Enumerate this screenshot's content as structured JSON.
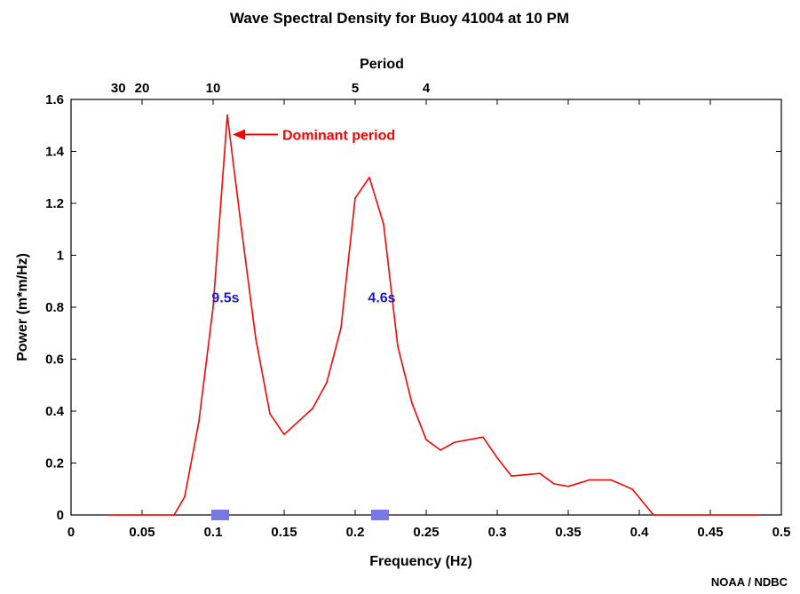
{
  "chart_data": {
    "type": "line",
    "title": "Wave Spectral Density for Buoy 41004 at 10 PM",
    "xlabel": "Frequency (Hz)",
    "ylabel": "Power (m*m/Hz)",
    "top_axis_label": "Period",
    "xlim": [
      0,
      0.5
    ],
    "ylim": [
      0,
      1.6
    ],
    "x_ticks": [
      {
        "value": 0,
        "label": "0"
      },
      {
        "value": 0.05,
        "label": "0.05"
      },
      {
        "value": 0.1,
        "label": "0.1"
      },
      {
        "value": 0.15,
        "label": "0.15"
      },
      {
        "value": 0.2,
        "label": "0.2"
      },
      {
        "value": 0.25,
        "label": "0.25"
      },
      {
        "value": 0.3,
        "label": "0.3"
      },
      {
        "value": 0.35,
        "label": "0.35"
      },
      {
        "value": 0.4,
        "label": "0.4"
      },
      {
        "value": 0.45,
        "label": "0.45"
      },
      {
        "value": 0.5,
        "label": "0.5"
      }
    ],
    "y_ticks": [
      {
        "value": 0,
        "label": "0"
      },
      {
        "value": 0.2,
        "label": "0.2"
      },
      {
        "value": 0.4,
        "label": "0.4"
      },
      {
        "value": 0.6,
        "label": "0.6"
      },
      {
        "value": 0.8,
        "label": "0.8"
      },
      {
        "value": 1.0,
        "label": "1"
      },
      {
        "value": 1.2,
        "label": "1.2"
      },
      {
        "value": 1.4,
        "label": "1.4"
      },
      {
        "value": 1.6,
        "label": "1.6"
      }
    ],
    "top_ticks": [
      {
        "value": 0.0333,
        "label": "30"
      },
      {
        "value": 0.05,
        "label": "20"
      },
      {
        "value": 0.1,
        "label": "10"
      },
      {
        "value": 0.2,
        "label": "5"
      },
      {
        "value": 0.25,
        "label": "4"
      }
    ],
    "grid": false,
    "series": [
      {
        "color": "#ff0000",
        "x": [
          0.025,
          0.0325,
          0.04,
          0.0475,
          0.055,
          0.065,
          0.0725,
          0.08,
          0.09,
          0.1,
          0.11,
          0.12,
          0.13,
          0.14,
          0.15,
          0.16,
          0.17,
          0.18,
          0.19,
          0.2,
          0.21,
          0.22,
          0.23,
          0.24,
          0.25,
          0.26,
          0.27,
          0.28,
          0.29,
          0.3,
          0.31,
          0.32,
          0.33,
          0.34,
          0.35,
          0.365,
          0.38,
          0.395,
          0.41,
          0.425,
          0.44,
          0.455,
          0.47,
          0.485
        ],
        "values": [
          0.0,
          0.0,
          0.0,
          0.0,
          0.0,
          0.0,
          0.0,
          0.07,
          0.36,
          0.8,
          1.54,
          1.1,
          0.68,
          0.39,
          0.31,
          0.36,
          0.41,
          0.51,
          0.72,
          1.22,
          1.3,
          1.12,
          0.65,
          0.43,
          0.29,
          0.25,
          0.28,
          0.29,
          0.3,
          0.22,
          0.15,
          0.155,
          0.16,
          0.12,
          0.11,
          0.135,
          0.135,
          0.1,
          0.0,
          0.0,
          0.0,
          0.0,
          0.0,
          0.0
        ]
      }
    ],
    "annotations": [
      {
        "text": "Dominant period",
        "x": 0.11,
        "y": 1.54,
        "color": "#ff0000"
      },
      {
        "text": "9.5s",
        "x": 0.1075,
        "y": 0.84,
        "color": "#1a1acd"
      },
      {
        "text": "4.6s",
        "x": 0.2175,
        "y": 0.84,
        "color": "#1a1acd"
      }
    ],
    "markers": [
      {
        "x": 0.105,
        "color": "#7777e6"
      },
      {
        "x": 0.2175,
        "color": "#7777e6"
      }
    ],
    "credit": "NOAA / NDBC"
  }
}
